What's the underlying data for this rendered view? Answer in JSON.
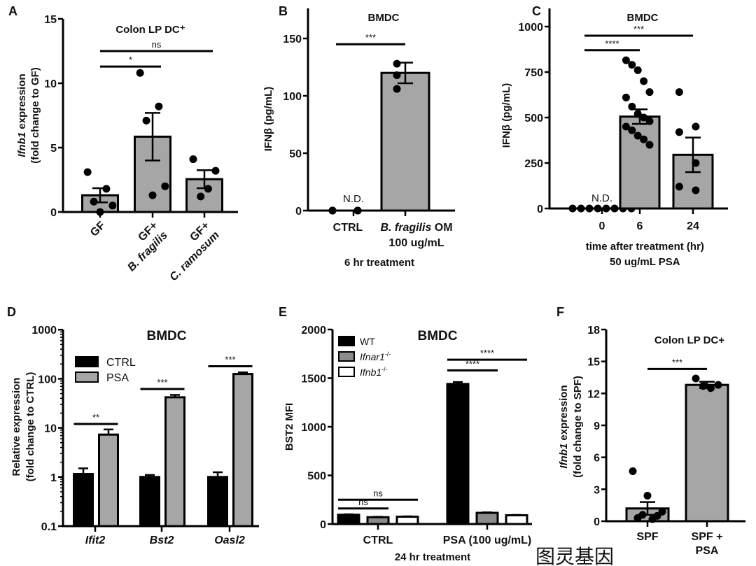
{
  "watermark": "图灵基因",
  "chart_data": [
    {
      "panel": "A",
      "type": "bar",
      "title": "Colon LP DC⁺",
      "ylabel": {
        "italic": "Ifnb1",
        "rest": " expression",
        "line2": "(fold change to GF)"
      },
      "yticks": [
        "0",
        "5",
        "10",
        "15"
      ],
      "ylim": [
        0,
        15
      ],
      "categories": [
        [
          "GF"
        ],
        [
          "GF+",
          "B. fragilis"
        ],
        [
          "GF+",
          "C. ramosum"
        ]
      ],
      "italic_line2": true,
      "means": [
        1.3,
        5.85,
        2.55
      ],
      "sem": [
        0.55,
        1.85,
        0.7
      ],
      "points": [
        [
          3.1,
          1.8,
          0.8,
          0.5,
          0.0
        ],
        [
          10.8,
          8.2,
          7.1,
          2.0,
          1.3
        ],
        [
          4.1,
          3.2,
          1.8,
          1.2
        ]
      ],
      "significance": [
        {
          "from": 0,
          "to": 1,
          "y": 11.3,
          "label": "*"
        },
        {
          "from": 0,
          "to": 2,
          "y": 12.5,
          "label": "ns"
        }
      ]
    },
    {
      "panel": "B",
      "type": "bar",
      "title": "BMDC",
      "ylabel": {
        "italic": "",
        "rest": "IFNβ (pg/mL)",
        "line2": ""
      },
      "yticks": [
        "0",
        "50",
        "100",
        "150"
      ],
      "ylim": [
        0,
        150
      ],
      "categories": [
        [
          "CTRL"
        ],
        [
          "B. fragilis OM",
          "100 ug/mL"
        ]
      ],
      "xlabel": [
        "6 hr treatment"
      ],
      "nd_label": "N.D.",
      "means": [
        null,
        120
      ],
      "sem": [
        null,
        9
      ],
      "points": [
        [
          0,
          0,
          0,
          0,
          0,
          0
        ],
        [
          128,
          118,
          106
        ]
      ],
      "significance": [
        {
          "from": 0,
          "to": 1,
          "y": 145,
          "label": "***"
        }
      ]
    },
    {
      "panel": "C",
      "type": "bar",
      "title": "BMDC",
      "ylabel": {
        "italic": "",
        "rest": "IFNβ (pg/mL)",
        "line2": ""
      },
      "yticks": [
        "0",
        "250",
        "500",
        "750",
        "1000"
      ],
      "ylim": [
        0,
        1000
      ],
      "categories": [
        [
          "0"
        ],
        [
          "6"
        ],
        [
          "24"
        ]
      ],
      "xlabel": [
        "time after treatment (hr)",
        "50 ug/mL PSA"
      ],
      "nd_label": "N.D.",
      "means": [
        null,
        505,
        295
      ],
      "sem": [
        null,
        40,
        95
      ],
      "points": [
        [
          0,
          0,
          0,
          0,
          0,
          0,
          0,
          0
        ],
        [
          815,
          790,
          760,
          700,
          640,
          610,
          560,
          520,
          500,
          480,
          450,
          430,
          400,
          380,
          350
        ],
        [
          640,
          450,
          420,
          250,
          120,
          100
        ]
      ],
      "significance": [
        {
          "from": 0,
          "to": 1,
          "y": 870,
          "label": "****"
        },
        {
          "from": 0,
          "to": 2,
          "y": 950,
          "label": "***"
        }
      ]
    },
    {
      "panel": "D",
      "type": "bar",
      "title": "BMDC",
      "yscale": "log",
      "ylabel": {
        "italic": "",
        "rest": "Relative expression",
        "line2": "(fold change to CTRL)"
      },
      "yticks": [
        "0.1",
        "1",
        "10",
        "100",
        "1000"
      ],
      "ylim": [
        0.1,
        1000
      ],
      "categories": [
        "Ifit2",
        "Bst2",
        "Oasl2"
      ],
      "legend": [
        "CTRL",
        "PSA"
      ],
      "legend_position": "top-left",
      "series": [
        {
          "name": "CTRL",
          "values": [
            1.15,
            1.0,
            1.0
          ],
          "err_top": [
            1.5,
            1.1,
            1.25
          ],
          "color": "#000000"
        },
        {
          "name": "PSA",
          "values": [
            7.3,
            42,
            125
          ],
          "err_top": [
            9.3,
            47,
            135
          ],
          "color": "#a6a6a6"
        }
      ],
      "significance": [
        {
          "group": 0,
          "y": 12,
          "label": "**"
        },
        {
          "group": 1,
          "y": 62,
          "label": "***"
        },
        {
          "group": 2,
          "y": 180,
          "label": "***"
        }
      ]
    },
    {
      "panel": "E",
      "type": "bar",
      "title": "BMDC",
      "ylabel": {
        "italic": "",
        "rest": "BST2 MFI",
        "line2": ""
      },
      "yticks": [
        "0",
        "500",
        "1000",
        "1500",
        "2000"
      ],
      "ylim": [
        0,
        2000
      ],
      "categories": [
        "CTRL",
        "PSA (100 ug/mL)"
      ],
      "xlabel": [
        "24 hr treatment"
      ],
      "legend": [
        {
          "name": "WT",
          "sup": "",
          "italic": false
        },
        {
          "name": "Ifnar1",
          "sup": "-/-",
          "italic": true
        },
        {
          "name": "Ifnb1",
          "sup": "-/-",
          "italic": true
        }
      ],
      "legend_position": "top-left",
      "series": [
        {
          "name": "WT",
          "values": [
            95,
            1440
          ],
          "err_top": [
            100,
            1460
          ],
          "color": "#000000"
        },
        {
          "name": "Ifnar1-/-",
          "values": [
            70,
            115
          ],
          "err_top": [
            74,
            120
          ],
          "color": "#8c8c8c"
        },
        {
          "name": "Ifnb1-/-",
          "values": [
            75,
            90
          ],
          "err_top": [
            79,
            94
          ],
          "color": "#ffffff"
        }
      ],
      "significance": [
        {
          "group": 0,
          "from": 0,
          "to": 1,
          "y": 160,
          "label": "ns"
        },
        {
          "group": 0,
          "from": 0,
          "to": 2,
          "y": 250,
          "label": "ns"
        },
        {
          "group": 1,
          "from": 0,
          "to": 1,
          "y": 1580,
          "label": "****"
        },
        {
          "group": 1,
          "from": 0,
          "to": 2,
          "y": 1690,
          "label": "****"
        }
      ]
    },
    {
      "panel": "F",
      "type": "bar",
      "title": "Colon LP DC+",
      "ylabel": {
        "italic": "Ifnb1",
        "rest": " expression",
        "line2": "(fold change to SPF)"
      },
      "yticks": [
        "0",
        "3",
        "6",
        "9",
        "12",
        "15",
        "18"
      ],
      "ylim": [
        0,
        18
      ],
      "categories": [
        [
          "SPF"
        ],
        [
          "SPF +",
          "PSA"
        ]
      ],
      "means": [
        1.2,
        12.8
      ],
      "sem": [
        0.6,
        0.3
      ],
      "points": [
        [
          4.7,
          2.4,
          0.9,
          0.6,
          0.5,
          0.3,
          0.2
        ],
        [
          13.4,
          12.8,
          12.5,
          12.7
        ]
      ],
      "significance": [
        {
          "from": 0,
          "to": 1,
          "y": 14.3,
          "label": "***"
        }
      ]
    }
  ]
}
